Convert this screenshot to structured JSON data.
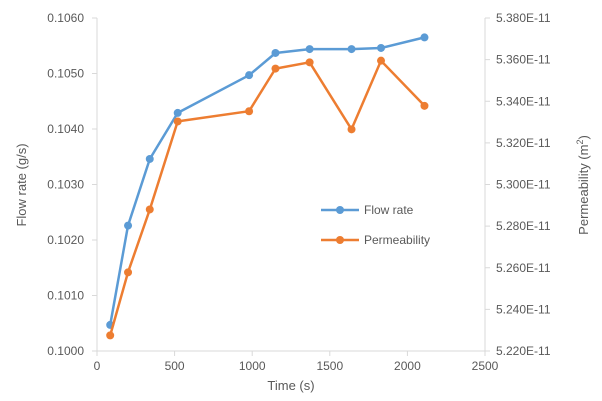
{
  "chart_data": {
    "type": "line",
    "title": "",
    "xlabel": "Time   (s)",
    "ylabel_left": "Flow rate  (g/s)",
    "ylabel_right_text": "Permeability (m",
    "ylabel_right_sup": "2",
    "ylabel_right_close": ")",
    "xlim": [
      0,
      2500
    ],
    "x_ticks": [
      0,
      500,
      1000,
      1500,
      2000,
      2500
    ],
    "x_tick_labels": [
      "0",
      "500",
      "1000",
      "1500",
      "2000",
      "2500"
    ],
    "ylim_left": [
      0.1,
      0.106
    ],
    "y_ticks_left": [
      0.1,
      0.101,
      0.102,
      0.103,
      0.104,
      0.105,
      0.106
    ],
    "y_tick_labels_left": [
      "0.1000",
      "0.1010",
      "0.1020",
      "0.1030",
      "0.1040",
      "0.1050",
      "0.1060"
    ],
    "ylim_right": [
      5.22e-11,
      5.38e-11
    ],
    "y_ticks_right": [
      5.22e-11,
      5.24e-11,
      5.26e-11,
      5.28e-11,
      5.3e-11,
      5.32e-11,
      5.34e-11,
      5.36e-11,
      5.38e-11
    ],
    "y_tick_labels_right": [
      "5.220E-11",
      "5.240E-11",
      "5.260E-11",
      "5.280E-11",
      "5.300E-11",
      "5.320E-11",
      "5.340E-11",
      "5.360E-11",
      "5.380E-11"
    ],
    "grid": false,
    "legend_position": "center-right",
    "series": [
      {
        "name": "Flow rate",
        "axis": "left",
        "color": "#5B9BD5",
        "x": [
          85,
          200,
          340,
          520,
          980,
          1150,
          1370,
          1640,
          1830,
          2110
        ],
        "y": [
          0.10047,
          0.10226,
          0.10346,
          0.10429,
          0.10497,
          0.10537,
          0.10544,
          0.10544,
          0.10546,
          0.10565
        ]
      },
      {
        "name": "Permeability",
        "axis": "right",
        "color": "#ED7D31",
        "x": [
          85,
          200,
          340,
          520,
          980,
          1150,
          1370,
          1640,
          1830,
          2110
        ],
        "y": [
          5.2275e-11,
          5.2578e-11,
          5.288e-11,
          5.3303e-11,
          5.3352e-11,
          5.3557e-11,
          5.3587e-11,
          5.3265e-11,
          5.3595e-11,
          5.3378e-11
        ]
      }
    ]
  }
}
